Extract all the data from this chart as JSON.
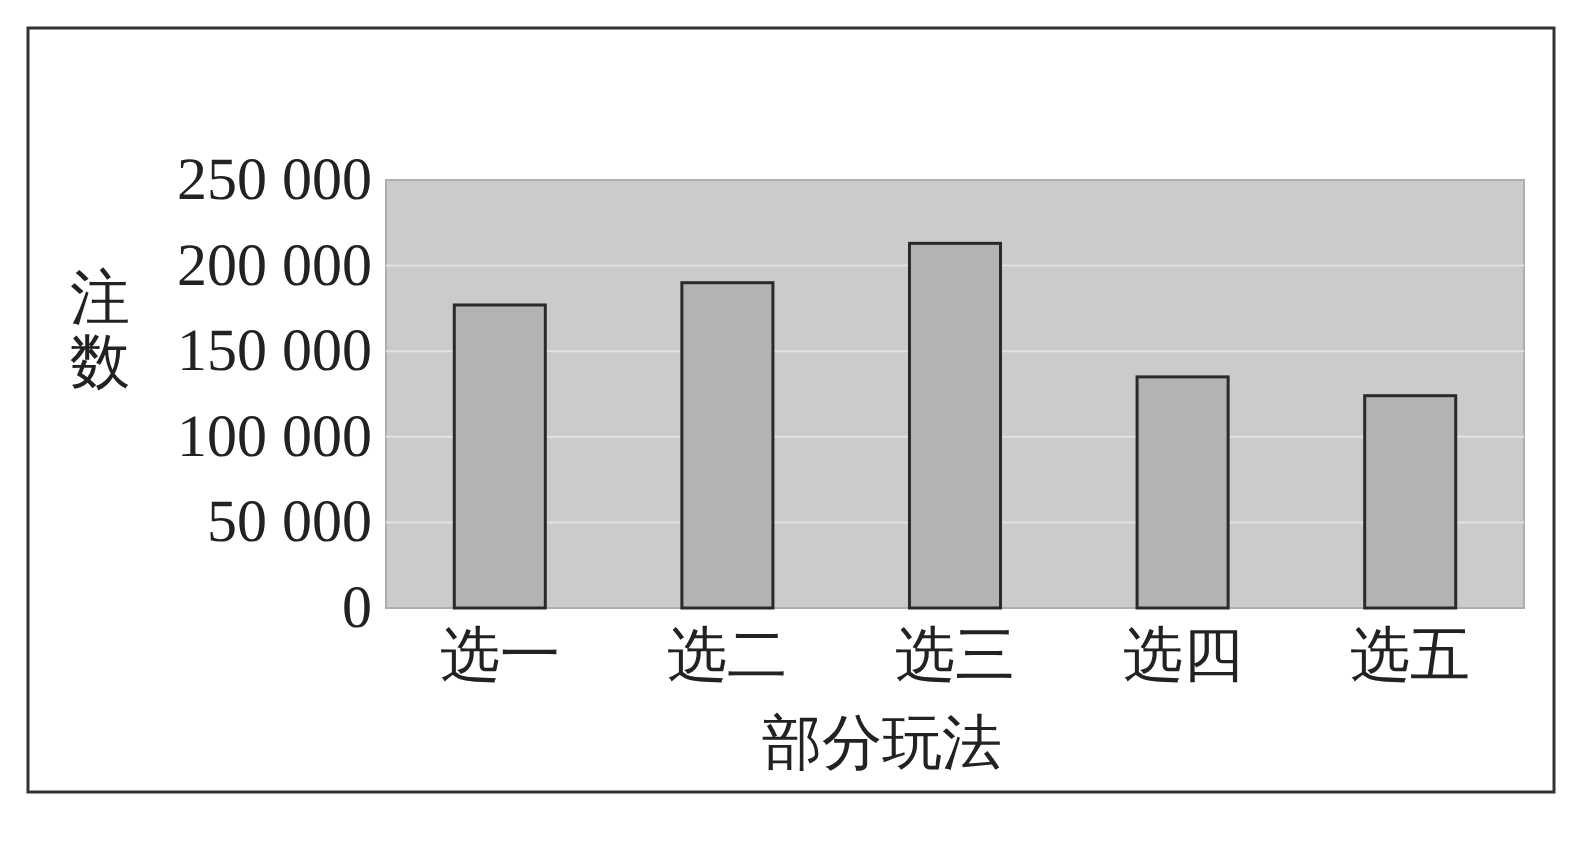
{
  "chart_data": {
    "type": "bar",
    "xlabel": "部分玩法",
    "ylabel": "注数",
    "categories": [
      "选一",
      "选二",
      "选三",
      "选四",
      "选五"
    ],
    "values": [
      177000,
      190000,
      213000,
      135000,
      124000
    ],
    "color": "#b3b3b3",
    "ylim": [
      0,
      250000
    ],
    "yticks": [
      0,
      {
        "value": 50000,
        "label": "50 000"
      },
      {
        "value": 100000,
        "label": "100 000"
      },
      {
        "value": 150000,
        "label": "150 000"
      },
      {
        "value": 200000,
        "label": "200 000"
      },
      {
        "value": 250000,
        "label": "250 000"
      }
    ],
    "grid": "y"
  }
}
